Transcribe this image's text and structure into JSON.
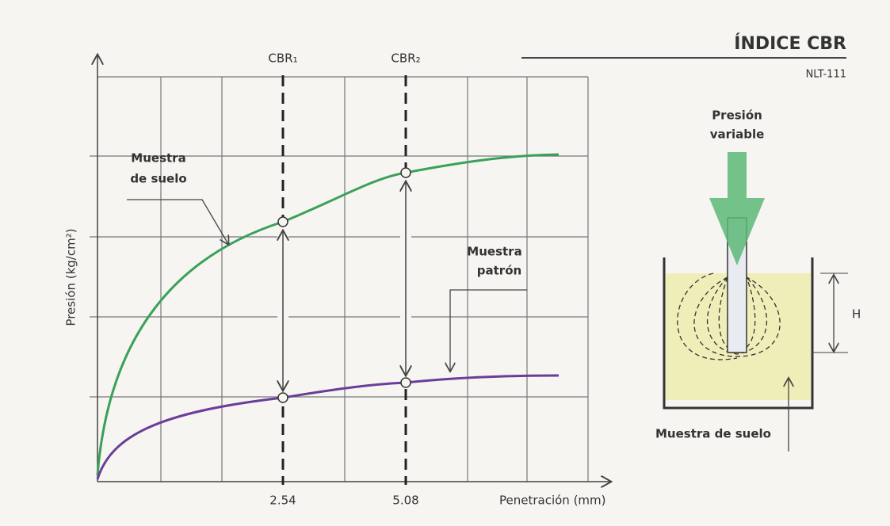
{
  "header": {
    "title": "ÍNDICE CBR",
    "subtitle": "NLT-111"
  },
  "graph": {
    "y_axis_label": "Presión (kg/cm²)",
    "x_axis_label": "Penetración (mm)",
    "x_marks": [
      "2.54",
      "5.08"
    ],
    "markers": [
      "CBR₁",
      "CBR₂"
    ],
    "curves": [
      {
        "label_lines": [
          "Muestra",
          "de suelo"
        ]
      },
      {
        "label_lines": [
          "Muestra",
          "patrón"
        ]
      }
    ]
  },
  "apparatus": {
    "load_label_lines": [
      "Presión",
      "variable"
    ],
    "height_label": "H",
    "sample_label": "Muestra de suelo"
  }
}
